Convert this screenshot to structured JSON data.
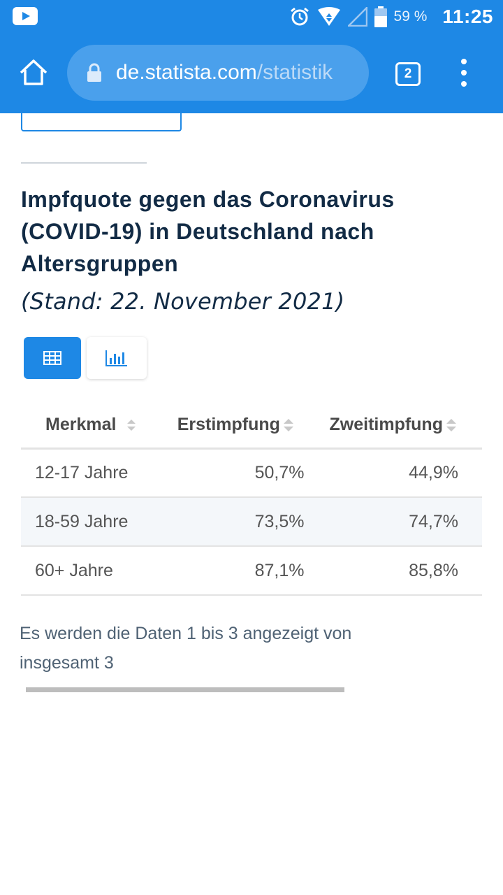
{
  "status_bar": {
    "battery_percent": "59 %",
    "time": "11:25",
    "icons": [
      "youtube-notification-icon",
      "alarm-icon",
      "wifi-icon",
      "signal-icon",
      "battery-icon"
    ]
  },
  "browser": {
    "url_host": "de.statista.com",
    "url_path": "/statistik",
    "tab_count": "2",
    "icons": [
      "home-icon",
      "lock-icon",
      "tabs-icon",
      "more-vert-icon"
    ]
  },
  "page": {
    "title": "Impfquote gegen das Coronavirus (COVID-19) in Deutschland nach Altersgruppen",
    "subtitle": "(Stand: 22. November 2021)"
  },
  "view_toggle": {
    "active": "table",
    "icons": [
      "table-icon",
      "bar-chart-icon"
    ]
  },
  "table": {
    "headers": [
      "Merkmal",
      "Erstimpfung",
      "Zweitimpfung"
    ],
    "rows": [
      {
        "merkmal": "12-17 Jahre",
        "erstimpfung": "50,7%",
        "zweitimpfung": "44,9%"
      },
      {
        "merkmal": "18-59 Jahre",
        "erstimpfung": "73,5%",
        "zweitimpfung": "74,7%"
      },
      {
        "merkmal": "60+ Jahre",
        "erstimpfung": "87,1%",
        "zweitimpfung": "85,8%"
      }
    ]
  },
  "info": {
    "line1": "Es werden die Daten 1 bis 3 angezeigt von",
    "line2": "insgesamt 3"
  },
  "colors": {
    "accent": "#1e88e5",
    "title": "#122b45",
    "row_alt": "#f4f7fa"
  }
}
